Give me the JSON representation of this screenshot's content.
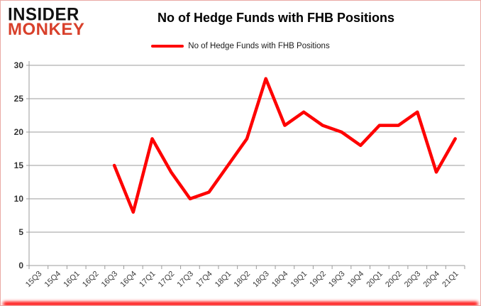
{
  "branding": {
    "logo_line1": "INSIDER",
    "logo_line2": "MONKEY",
    "logo_color1": "#111111",
    "logo_color2": "#d8402b"
  },
  "header": {
    "title": "No of Hedge Funds with FHB Positions"
  },
  "legend": {
    "label": "No of Hedge Funds with FHB Positions",
    "line_color": "#fe0000"
  },
  "chart_data": {
    "type": "line",
    "title": "No of Hedge Funds with FHB Positions",
    "categories": [
      "15Q3",
      "15Q4",
      "16Q1",
      "16Q2",
      "16Q3",
      "16Q4",
      "17Q1",
      "17Q2",
      "17Q3",
      "17Q4",
      "18Q1",
      "18Q2",
      "18Q3",
      "18Q4",
      "19Q1",
      "19Q2",
      "19Q3",
      "19Q4",
      "20Q1",
      "20Q2",
      "20Q3",
      "20Q4",
      "21Q1"
    ],
    "series": [
      {
        "name": "No of Hedge Funds with FHB Positions",
        "color": "#fe0000",
        "values": [
          null,
          null,
          null,
          null,
          15,
          8,
          19,
          14,
          10,
          11,
          15,
          19,
          28,
          21,
          23,
          21,
          20,
          18,
          21,
          21,
          23,
          14,
          19
        ]
      }
    ],
    "xlabel": "",
    "ylabel": "",
    "ylim": [
      0,
      30
    ],
    "yticks": [
      0,
      5,
      10,
      15,
      20,
      25,
      30
    ],
    "grid": true,
    "gridline_color": "#9b9b9b",
    "axis_color": "#9b9b9b",
    "tick_label_color": "#3a3a3a",
    "legend_position": "top"
  }
}
